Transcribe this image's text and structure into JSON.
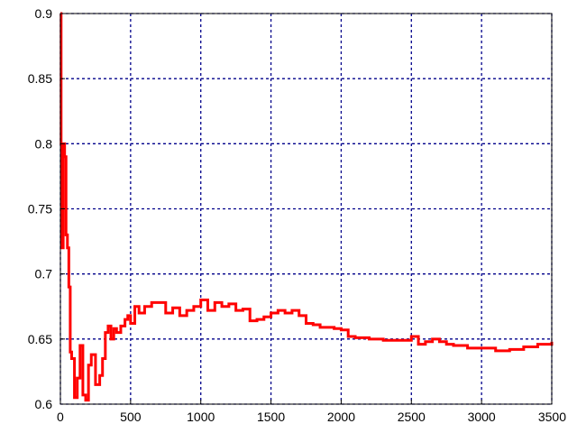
{
  "chart_data": {
    "type": "line",
    "title": "",
    "xlabel": "",
    "ylabel": "",
    "xlim": [
      0,
      3500
    ],
    "ylim": [
      0.6,
      0.9
    ],
    "grid": true,
    "x_ticks": [
      0,
      500,
      1000,
      1500,
      2000,
      2500,
      3000,
      3500
    ],
    "x_tick_labels": [
      "0",
      "500",
      "1000",
      "1500",
      "2000",
      "2500",
      "3000",
      "3500"
    ],
    "y_ticks": [
      0.6,
      0.65,
      0.7,
      0.75,
      0.8,
      0.85,
      0.9
    ],
    "y_tick_labels": [
      "0.6",
      "0.65",
      "0.7",
      "0.75",
      "0.8",
      "0.85",
      "0.9"
    ],
    "colors": {
      "line": "#ff0000",
      "grid": "#00008b",
      "axes": "#000000"
    },
    "series": [
      {
        "x": [
          0,
          5,
          12,
          20,
          30,
          40,
          50,
          60,
          70,
          80,
          100,
          120,
          140,
          160,
          180,
          200,
          220,
          250,
          280,
          300,
          320,
          340,
          360,
          380,
          400,
          430,
          460,
          480,
          500,
          530,
          560,
          600,
          650,
          700,
          750,
          800,
          850,
          900,
          950,
          1000,
          1050,
          1100,
          1150,
          1200,
          1250,
          1300,
          1350,
          1400,
          1450,
          1500,
          1550,
          1600,
          1650,
          1700,
          1750,
          1800,
          1850,
          1900,
          1950,
          2000,
          2050,
          2100,
          2200,
          2300,
          2400,
          2500,
          2550,
          2600,
          2650,
          2700,
          2750,
          2800,
          2900,
          3000,
          3100,
          3200,
          3300,
          3400,
          3500
        ],
        "y": [
          0.9,
          0.8,
          0.72,
          0.8,
          0.79,
          0.73,
          0.72,
          0.69,
          0.64,
          0.635,
          0.605,
          0.62,
          0.645,
          0.607,
          0.603,
          0.63,
          0.638,
          0.615,
          0.622,
          0.635,
          0.655,
          0.66,
          0.65,
          0.658,
          0.655,
          0.66,
          0.665,
          0.668,
          0.662,
          0.675,
          0.67,
          0.675,
          0.678,
          0.678,
          0.67,
          0.674,
          0.668,
          0.672,
          0.675,
          0.68,
          0.672,
          0.678,
          0.675,
          0.677,
          0.672,
          0.673,
          0.664,
          0.665,
          0.667,
          0.67,
          0.672,
          0.67,
          0.672,
          0.668,
          0.662,
          0.661,
          0.659,
          0.659,
          0.658,
          0.657,
          0.652,
          0.651,
          0.65,
          0.649,
          0.649,
          0.652,
          0.646,
          0.648,
          0.65,
          0.648,
          0.646,
          0.645,
          0.643,
          0.643,
          0.641,
          0.642,
          0.644,
          0.646,
          0.648
        ]
      }
    ]
  }
}
